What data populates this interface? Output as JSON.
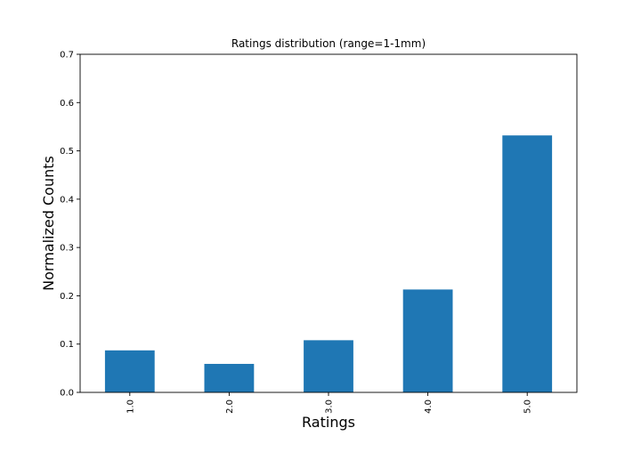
{
  "chart_data": {
    "type": "bar",
    "title": "Ratings distribution (range=1-1mm)",
    "xlabel": "Ratings",
    "ylabel": "Normalized Counts",
    "categories": [
      "1.0",
      "2.0",
      "3.0",
      "4.0",
      "5.0"
    ],
    "values": [
      0.087,
      0.059,
      0.108,
      0.213,
      0.532
    ],
    "ylim": [
      0,
      0.7
    ],
    "yticks": [
      "0.0",
      "0.1",
      "0.2",
      "0.3",
      "0.4",
      "0.5",
      "0.6",
      "0.7"
    ],
    "bar_color": "#1f77b4",
    "grid": false,
    "legend": "none"
  }
}
